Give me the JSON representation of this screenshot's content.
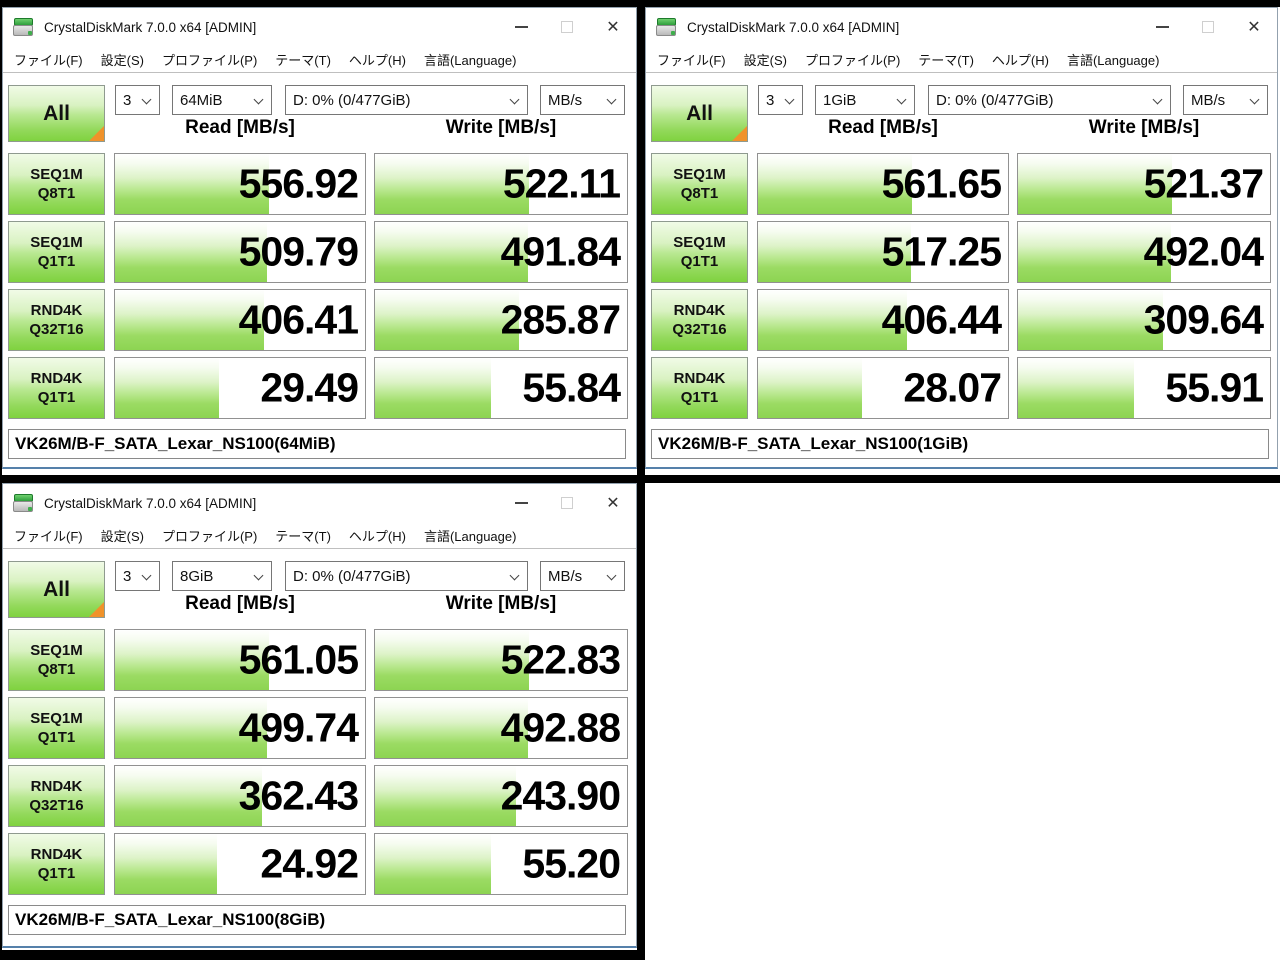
{
  "colors": {
    "bar_green": "#8dd452",
    "button_green": "#7fd23f",
    "profile_corner_orange": "#f0922a",
    "divider_black": "#000000",
    "window_border_bottom_blue": "#5580aa"
  },
  "windows": [
    {
      "title": "CrystalDiskMark 7.0.0 x64 [ADMIN]",
      "menu": [
        "ファイル(F)",
        "設定(S)",
        "プロファイル(P)",
        "テーマ(T)",
        "ヘルプ(H)",
        "言語(Language)"
      ],
      "controls": {
        "all_label": "All",
        "count": "3",
        "size": "64MiB",
        "drive": "D: 0% (0/477GiB)",
        "unit": "MB/s"
      },
      "col_headers": {
        "read": "Read [MB/s]",
        "write": "Write [MB/s]"
      },
      "rows": [
        {
          "label_top": "SEQ1M",
          "label_bottom": "Q8T1",
          "read": "556.92",
          "write": "522.11"
        },
        {
          "label_top": "SEQ1M",
          "label_bottom": "Q1T1",
          "read": "509.79",
          "write": "491.84"
        },
        {
          "label_top": "RND4K",
          "label_bottom": "Q32T16",
          "read": "406.41",
          "write": "285.87"
        },
        {
          "label_top": "RND4K",
          "label_bottom": "Q1T1",
          "read": "29.49",
          "write": "55.84"
        }
      ],
      "footer": "VK26M/B-F_SATA_Lexar_NS100(64MiB)"
    },
    {
      "title": "CrystalDiskMark 7.0.0 x64 [ADMIN]",
      "menu": [
        "ファイル(F)",
        "設定(S)",
        "プロファイル(P)",
        "テーマ(T)",
        "ヘルプ(H)",
        "言語(Language)"
      ],
      "controls": {
        "all_label": "All",
        "count": "3",
        "size": "1GiB",
        "drive": "D: 0% (0/477GiB)",
        "unit": "MB/s"
      },
      "col_headers": {
        "read": "Read [MB/s]",
        "write": "Write [MB/s]"
      },
      "rows": [
        {
          "label_top": "SEQ1M",
          "label_bottom": "Q8T1",
          "read": "561.65",
          "write": "521.37"
        },
        {
          "label_top": "SEQ1M",
          "label_bottom": "Q1T1",
          "read": "517.25",
          "write": "492.04"
        },
        {
          "label_top": "RND4K",
          "label_bottom": "Q32T16",
          "read": "406.44",
          "write": "309.64"
        },
        {
          "label_top": "RND4K",
          "label_bottom": "Q1T1",
          "read": "28.07",
          "write": "55.91"
        }
      ],
      "footer": "VK26M/B-F_SATA_Lexar_NS100(1GiB)"
    },
    {
      "title": "CrystalDiskMark 7.0.0 x64 [ADMIN]",
      "menu": [
        "ファイル(F)",
        "設定(S)",
        "プロファイル(P)",
        "テーマ(T)",
        "ヘルプ(H)",
        "言語(Language)"
      ],
      "controls": {
        "all_label": "All",
        "count": "3",
        "size": "8GiB",
        "drive": "D: 0% (0/477GiB)",
        "unit": "MB/s"
      },
      "col_headers": {
        "read": "Read [MB/s]",
        "write": "Write [MB/s]"
      },
      "rows": [
        {
          "label_top": "SEQ1M",
          "label_bottom": "Q8T1",
          "read": "561.05",
          "write": "522.83"
        },
        {
          "label_top": "SEQ1M",
          "label_bottom": "Q1T1",
          "read": "499.74",
          "write": "492.88"
        },
        {
          "label_top": "RND4K",
          "label_bottom": "Q32T16",
          "read": "362.43",
          "write": "243.90"
        },
        {
          "label_top": "RND4K",
          "label_bottom": "Q1T1",
          "read": "24.92",
          "write": "55.20"
        }
      ],
      "footer": "VK26M/B-F_SATA_Lexar_NS100(8GiB)"
    }
  ]
}
